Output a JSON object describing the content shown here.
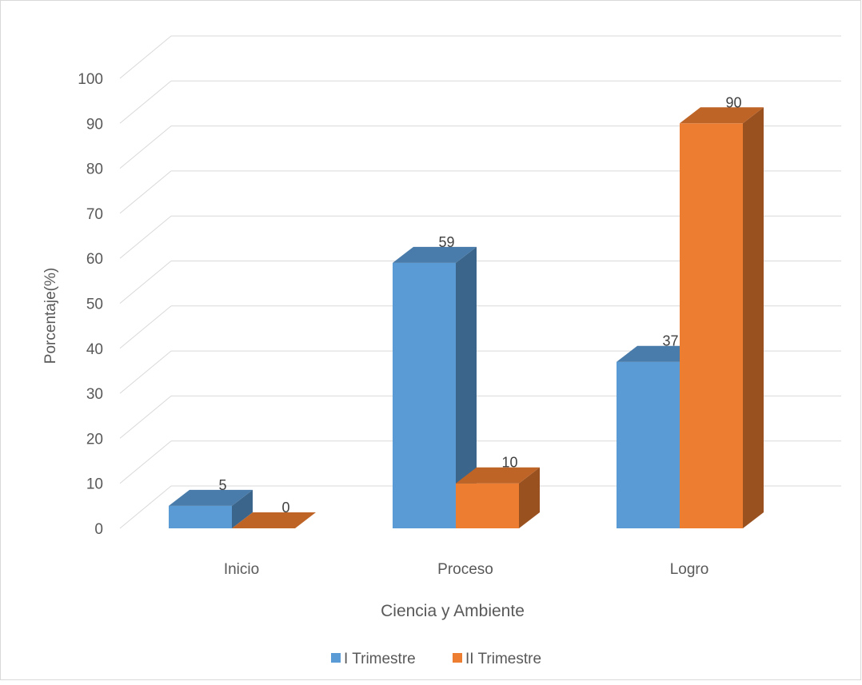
{
  "chart_data": {
    "type": "bar",
    "title": "",
    "xlabel": "Ciencia y Ambiente",
    "ylabel": "Porcentaje(%)",
    "categories": [
      "Inicio",
      "Proceso",
      "Logro"
    ],
    "series": [
      {
        "name": "I Trimestre",
        "values": [
          5,
          59,
          37
        ],
        "color": "#5B9BD5"
      },
      {
        "name": "II Trimestre",
        "values": [
          0,
          10,
          90
        ],
        "color": "#ED7D31"
      }
    ],
    "ylim": [
      0,
      100
    ],
    "yticks": [
      "0",
      "10",
      "20",
      "30",
      "40",
      "50",
      "60",
      "70",
      "80",
      "90",
      "100"
    ],
    "data_labels": [
      [
        "5",
        "59",
        "37"
      ],
      [
        "0",
        "10",
        "90"
      ]
    ],
    "grid": true,
    "legend_position": "bottom",
    "style": "3d-clustered-column"
  }
}
